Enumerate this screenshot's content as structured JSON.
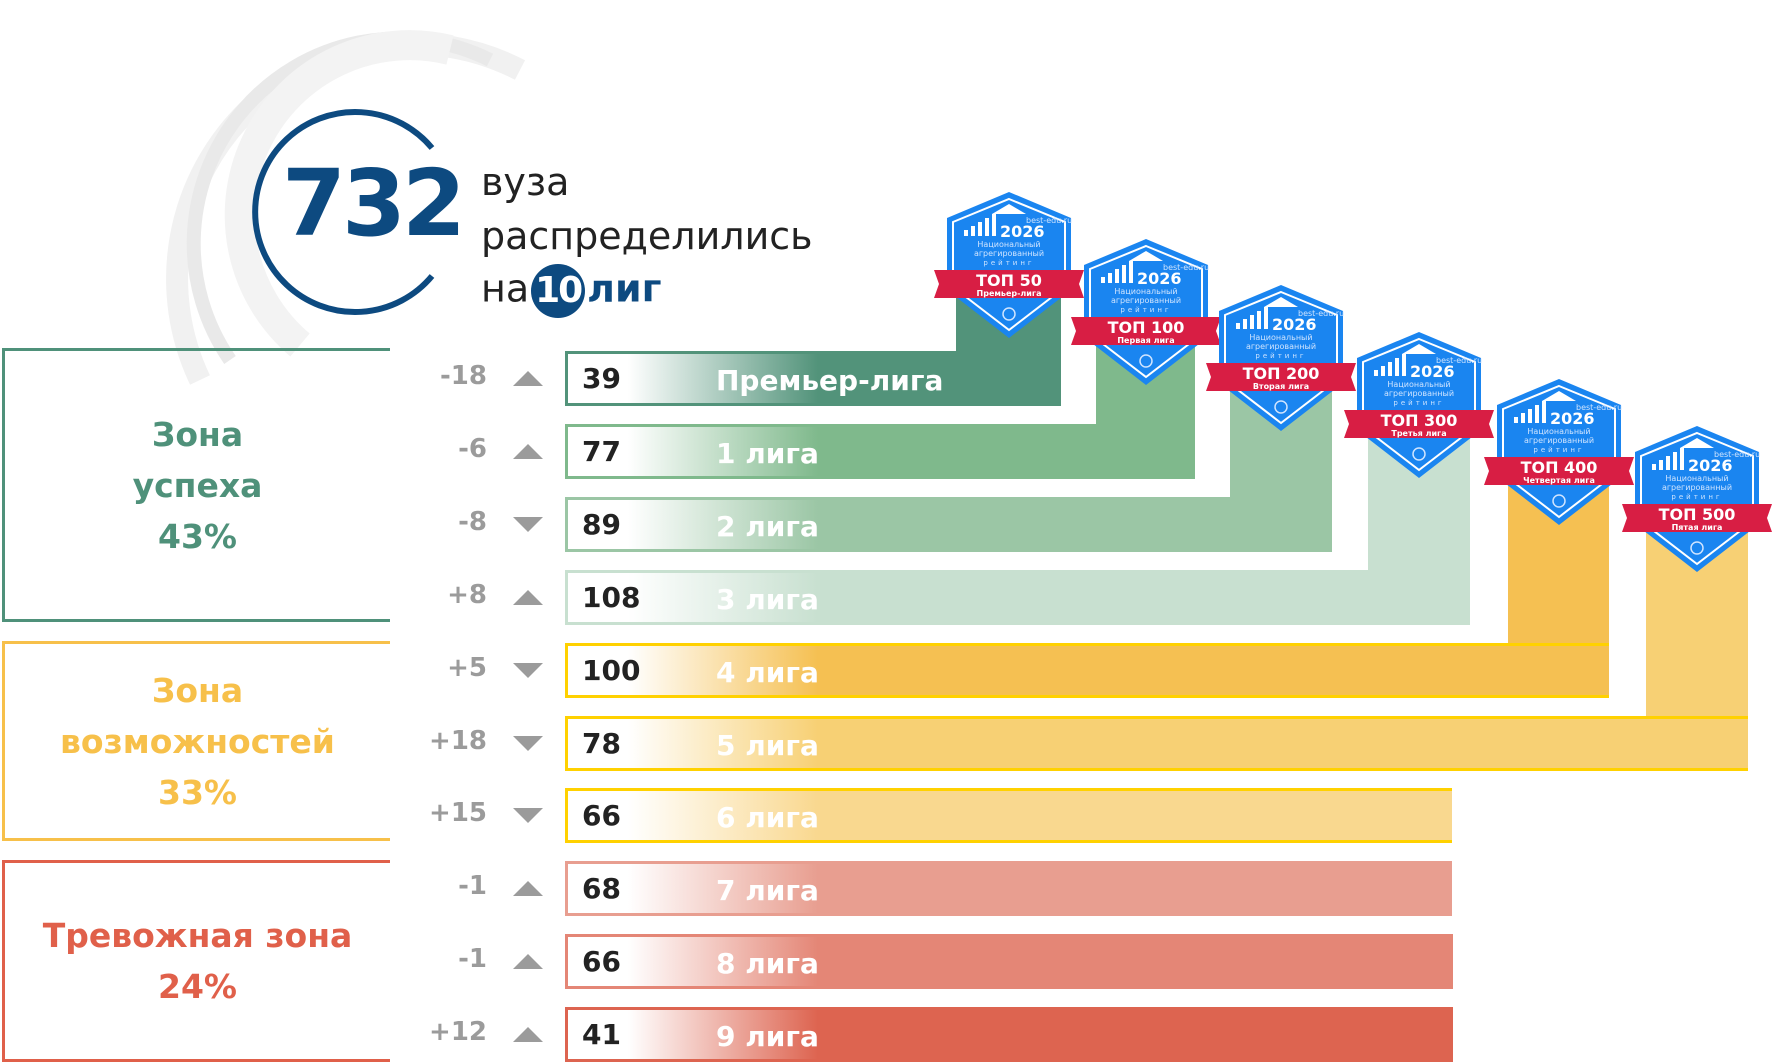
{
  "header": {
    "total": "732",
    "line1": "вуза",
    "line2": "распределились",
    "line3_prefix": "на",
    "leagues_count": "10",
    "line3_suffix": "лиг"
  },
  "zones": [
    {
      "title1": "Зона",
      "title2": "успеха",
      "percent": "43%",
      "color": "#4f917a"
    },
    {
      "title1": "Зона",
      "title2": "возможностей",
      "percent": "33%",
      "color": "#f7c04a"
    },
    {
      "title1": "Тревожная зона",
      "title2": "",
      "percent": "24%",
      "color": "#e0604a"
    }
  ],
  "rows": [
    {
      "delta": "-18",
      "dir": "up",
      "count": "39",
      "label": "Премьер-лига",
      "color": "#52937a",
      "border": "#52937a"
    },
    {
      "delta": "-6",
      "dir": "up",
      "count": "77",
      "label": "1 лига",
      "color": "#7fb98c",
      "border": "#7fb98c"
    },
    {
      "delta": "-8",
      "dir": "down",
      "count": "89",
      "label": "2 лига",
      "color": "#9bc6a5",
      "border": "#9bc6a5"
    },
    {
      "delta": "+8",
      "dir": "up",
      "count": "108",
      "label": "3 лига",
      "color": "#c8e0d0",
      "border": "#c8e0d0"
    },
    {
      "delta": "+5",
      "dir": "down",
      "count": "100",
      "label": "4 лига",
      "color": "#f5c052",
      "border": "#ffd100"
    },
    {
      "delta": "+18",
      "dir": "down",
      "count": "78",
      "label": "5 лига",
      "color": "#f7d074",
      "border": "#ffd100"
    },
    {
      "delta": "+15",
      "dir": "down",
      "count": "66",
      "label": "6 лига",
      "color": "#f9d88f",
      "border": "#ffd100"
    },
    {
      "delta": "-1",
      "dir": "up",
      "count": "68",
      "label": "7 лига",
      "color": "#e89e90",
      "border": "#e89e90"
    },
    {
      "delta": "-1",
      "dir": "up",
      "count": "66",
      "label": "8 лига",
      "color": "#e48676",
      "border": "#e48676"
    },
    {
      "delta": "+12",
      "dir": "up",
      "count": "41",
      "label": "9 лига",
      "color": "#dd6450",
      "border": "#dd6450"
    }
  ],
  "badge_common": {
    "site": "best-edu.ru",
    "year": "2026",
    "line1": "Национальный",
    "line2": "агрегированный",
    "line3": "рейтинг"
  },
  "badges": [
    {
      "top": "ТОП 50",
      "league": "Премьер-лига"
    },
    {
      "top": "ТОП 100",
      "league": "Первая лига"
    },
    {
      "top": "ТОП 200",
      "league": "Вторая лига"
    },
    {
      "top": "ТОП 300",
      "league": "Третья лига"
    },
    {
      "top": "ТОП 400",
      "league": "Четвертая лига"
    },
    {
      "top": "ТОП 500",
      "league": "Пятая лига"
    }
  ],
  "colors": {
    "brand": "#0d4a80",
    "badge_blue": "#1a85f0",
    "badge_red": "#d81e44"
  }
}
